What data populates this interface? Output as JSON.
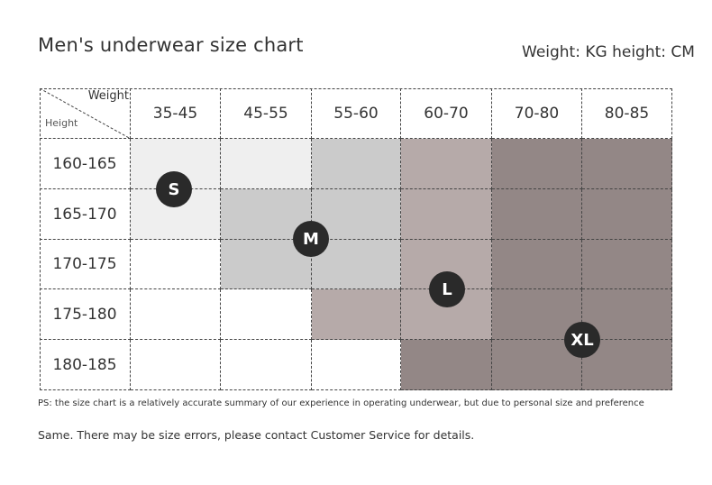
{
  "header": {
    "title": "Men's underwear size chart",
    "units": "Weight: KG height: CM"
  },
  "table": {
    "corner_weight": "Weight",
    "corner_height": "Height",
    "weight_cols": [
      "35-45",
      "45-55",
      "55-60",
      "60-70",
      "70-80",
      "80-85"
    ],
    "height_rows": [
      "160-165",
      "165-170",
      "170-175",
      "175-180",
      "180-185"
    ],
    "cell_sizes": [
      [
        "S",
        "S",
        "M",
        "L",
        "XL",
        "XL"
      ],
      [
        "S",
        "M",
        "M",
        "L",
        "XL",
        "XL"
      ],
      [
        "",
        "M",
        "M",
        "L",
        "XL",
        "XL"
      ],
      [
        "",
        "",
        "L",
        "L",
        "XL",
        "XL"
      ],
      [
        "",
        "",
        "",
        "XL",
        "XL",
        "XL"
      ]
    ],
    "size_colors": {
      "S": "#efefef",
      "M": "#cbcbcb",
      "L": "#b6aaa9",
      "XL": "#938786",
      "": "#ffffff"
    },
    "badges": [
      "S",
      "M",
      "L",
      "XL"
    ]
  },
  "footer": {
    "ps": "PS: the size chart is a relatively accurate summary of our experience in operating underwear, but due to personal size and preference",
    "note": "Same. There may be size errors, please contact Customer Service for details."
  }
}
